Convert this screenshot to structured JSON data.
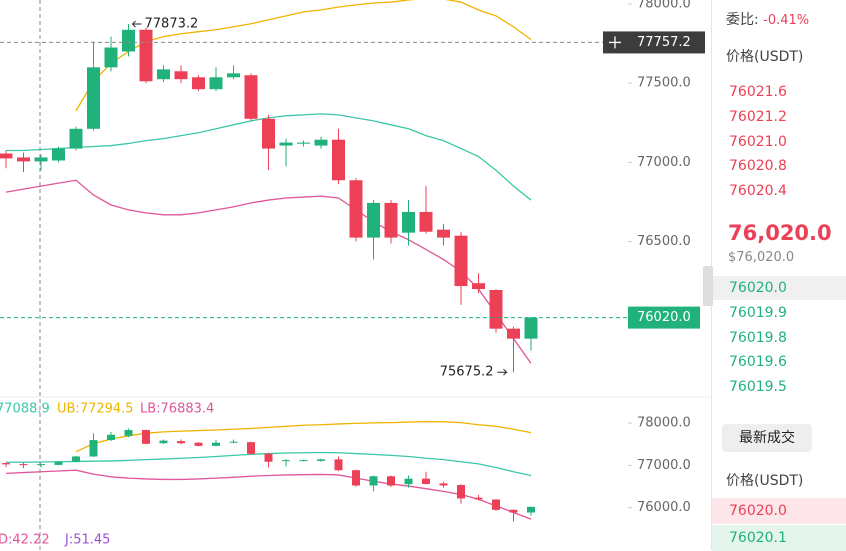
{
  "chart_data": [
    {
      "type": "candlestick",
      "open": [
        77056,
        77031,
        77006,
        77012,
        77087,
        77212,
        77600,
        77700,
        77837,
        77525,
        77575,
        77537,
        77462,
        77537,
        77550,
        77275,
        77106,
        77118,
        77106,
        77143,
        76887,
        76525,
        76744,
        76556,
        76687,
        76575,
        76537,
        76237,
        76194,
        75950,
        75887
      ],
      "high": [
        77075,
        77062,
        77050,
        77100,
        77225,
        77762,
        77794,
        77873.2,
        77850,
        77612,
        77612,
        77550,
        77600,
        77612,
        77562,
        77300,
        77150,
        77137,
        77162,
        77212,
        76900,
        76762,
        76762,
        76762,
        76850,
        76612,
        76562,
        76300,
        76200,
        75962,
        76025
      ],
      "low": [
        76963,
        76938,
        76950,
        77000,
        77075,
        77200,
        77575,
        77669,
        77500,
        77506,
        77500,
        77450,
        77450,
        77525,
        77262,
        76950,
        76975,
        77100,
        77087,
        76862,
        76500,
        76387,
        76487,
        76475,
        76550,
        76475,
        76100,
        76175,
        75925,
        75675.2,
        75812
      ],
      "close": [
        77025,
        77006,
        77031,
        77087,
        77212,
        77600,
        77725,
        77837,
        77512,
        77587,
        77525,
        77462,
        77537,
        77562,
        77275,
        77087,
        77125,
        77125,
        77143,
        76887,
        76525,
        76744,
        76525,
        76687,
        76562,
        76525,
        76219,
        76200,
        75950,
        75887,
        76020
      ],
      "up_color": "#20b27a",
      "down_color": "#ec4057",
      "ylim": [
        75525,
        78025
      ],
      "yticks": [
        {
          "value": 78000,
          "label": "78000.0"
        },
        {
          "value": 77500,
          "label": "77500.0"
        },
        {
          "value": 77000,
          "label": "77000.0"
        },
        {
          "value": 76500,
          "label": "76500.0"
        }
      ],
      "bands": {
        "upper": {
          "color": "#f0b400",
          "values": [
            null,
            null,
            null,
            null,
            77325,
            77512,
            77625,
            77700,
            77762,
            77794,
            77812,
            77825,
            77837,
            77856,
            77875,
            77900,
            77925,
            77950,
            77962,
            77981,
            77994,
            78006,
            78012,
            78025,
            78037,
            78031,
            78012,
            77962,
            77925,
            77856,
            77775
          ]
        },
        "middle": {
          "color": "#3cc8a8",
          "values": [
            77075,
            77075,
            77081,
            77087,
            77094,
            77100,
            77106,
            77119,
            77137,
            77150,
            77169,
            77187,
            77212,
            77237,
            77262,
            77281,
            77294,
            77300,
            77306,
            77300,
            77281,
            77262,
            77237,
            77212,
            77169,
            77137,
            77087,
            77037,
            76950,
            76850,
            76762
          ]
        },
        "lower": {
          "color": "#e0559b",
          "values": [
            76812,
            76831,
            76850,
            76869,
            76887,
            76794,
            76731,
            76700,
            76681,
            76669,
            76669,
            76681,
            76700,
            76719,
            76744,
            76762,
            76775,
            76781,
            76787,
            76775,
            76700,
            76625,
            76562,
            76512,
            76450,
            76387,
            76312,
            76200,
            76044,
            75887,
            75731
          ]
        }
      },
      "crosshair": 77757.2,
      "last_price": {
        "value": 76020,
        "label": "76020.0"
      }
    },
    {
      "type": "candlestick",
      "ylim": [
        75000,
        78500
      ],
      "yticks": [
        {
          "value": 78000,
          "label": "78000.0"
        },
        {
          "value": 77000,
          "label": "77000.0"
        },
        {
          "value": 76000,
          "label": "76000.0"
        }
      ],
      "legend": [
        "77088.9",
        "UB:77294.5",
        "LB:76883.4"
      ],
      "indicators": [
        "D:42.22",
        "J:51.45"
      ]
    }
  ],
  "order_book": {
    "ratio_label": "委比:",
    "ratio": "-0.41%",
    "price_header": "价格(USDT)",
    "asks": [
      "76021.6",
      "76021.2",
      "76021.0",
      "76020.8",
      "76020.4"
    ],
    "last": "76,020.0",
    "last_usd": "$76,020.0",
    "bids": [
      "76020.0",
      "76019.9",
      "76019.8",
      "76019.6",
      "76019.5"
    ]
  },
  "trades": {
    "button": "最新成交",
    "price_header": "价格(USDT)",
    "prices": [
      "76020.0",
      "76020.1"
    ]
  }
}
